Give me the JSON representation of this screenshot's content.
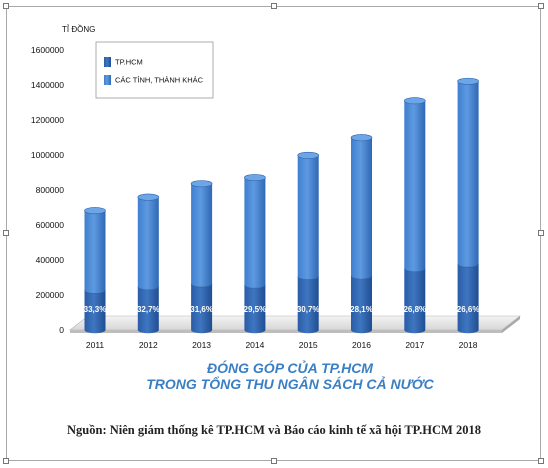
{
  "chart_data": {
    "type": "bar",
    "stacked": true,
    "style": "3d-cylinder",
    "unit_label": "TỈ ĐỒNG",
    "categories": [
      "2011",
      "2012",
      "2013",
      "2014",
      "2015",
      "2016",
      "2017",
      "2018"
    ],
    "series": [
      {
        "name": "TP.HCM",
        "color": "#2a5ca8",
        "values": [
          227000,
          248000,
          264000,
          257000,
          306000,
          309000,
          351000,
          378000
        ]
      },
      {
        "name": "CÁC TỈNH, THÀNH KHÁC",
        "color": "#3d7fd0",
        "values": [
          455000,
          511000,
          572000,
          614000,
          692000,
          790000,
          959000,
          1043000
        ]
      }
    ],
    "share_labels": [
      "33,3%",
      "32,7%",
      "31,6%",
      "29,5%",
      "30,7%",
      "28,1%",
      "26,8%",
      "26,6%"
    ],
    "yticks": [
      "0",
      "200000",
      "400000",
      "600000",
      "800000",
      "1000000",
      "1200000",
      "1400000",
      "1600000"
    ],
    "ylim": [
      0,
      1600000
    ],
    "legend_position": "top-left",
    "grid": false,
    "title_lines": [
      "ĐÓNG GÓP CỦA TP.HCM",
      "TRONG TỔNG THU NGÂN SÁCH CẢ NƯỚC"
    ]
  },
  "source_text": "Nguồn: Niên giám thống kê TP.HCM và Báo cáo kinh tế xã hội TP.HCM 2018"
}
